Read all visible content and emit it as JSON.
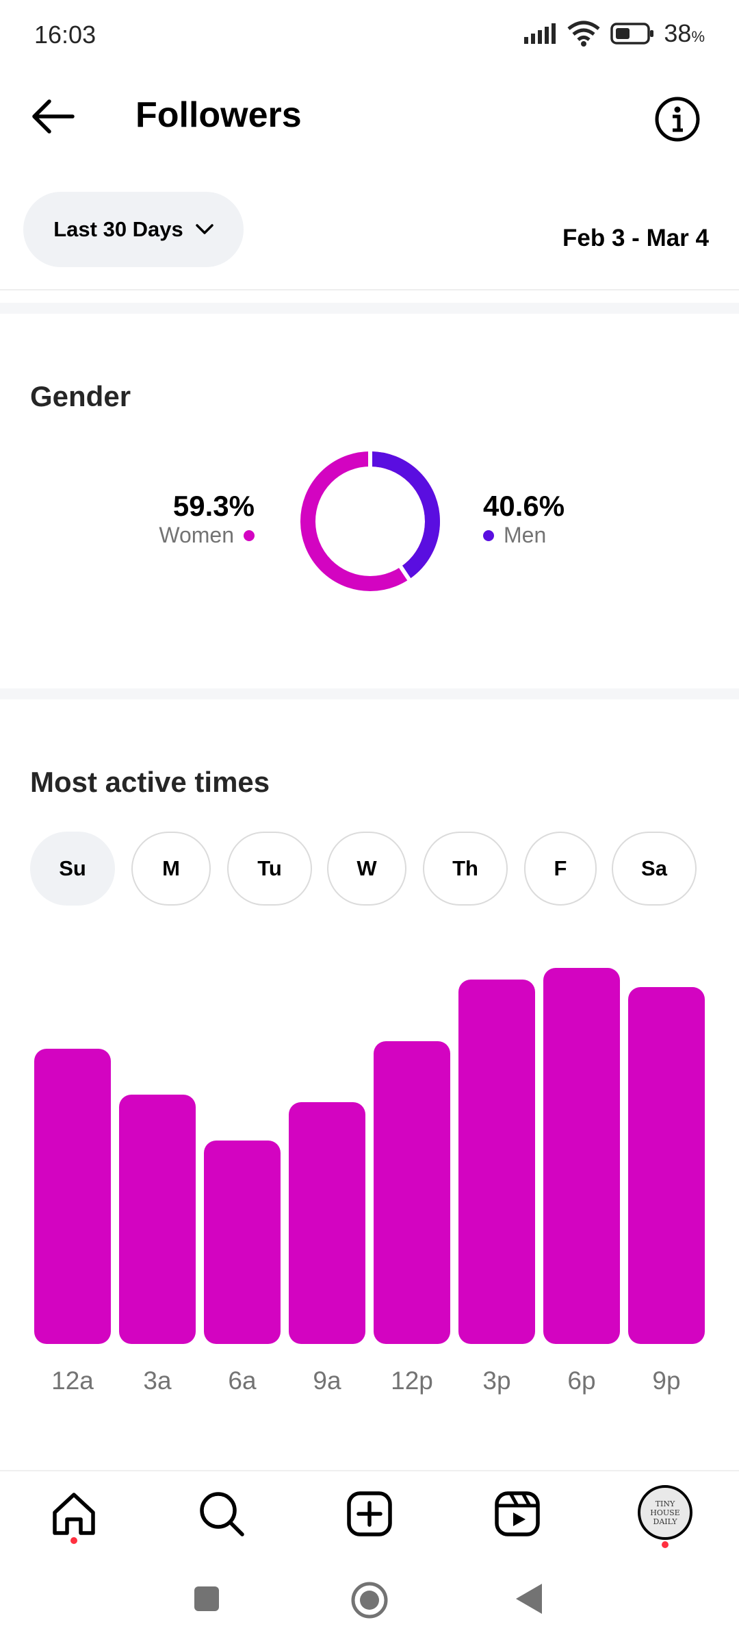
{
  "status_bar": {
    "time": "16:03",
    "battery_value": "38",
    "battery_unit": "%"
  },
  "header": {
    "title": "Followers",
    "back_icon": "back-arrow-icon",
    "info_icon": "info-icon"
  },
  "filter": {
    "range_label": "Last 30 Days",
    "date_range": "Feb 3 - Mar 4"
  },
  "gender": {
    "title": "Gender",
    "women": {
      "percent": "59.3%",
      "label": "Women",
      "color": "#d304c1",
      "value": 59.3
    },
    "men": {
      "percent": "40.6%",
      "label": "Men",
      "color": "#5a0ee0",
      "value": 40.6
    }
  },
  "active_times": {
    "title": "Most active times",
    "days": [
      "Su",
      "M",
      "Tu",
      "W",
      "Th",
      "F",
      "Sa"
    ],
    "selected_day": "Su"
  },
  "chart_data": {
    "type": "bar",
    "categories": [
      "12a",
      "3a",
      "6a",
      "9a",
      "12p",
      "3p",
      "6p",
      "9p"
    ],
    "values": [
      77,
      65,
      53,
      63,
      79,
      95,
      98,
      93
    ],
    "ylim": [
      0,
      100
    ],
    "color": "#d304c1",
    "grid": false
  },
  "bottom_nav": {
    "items": [
      "home-icon",
      "search-icon",
      "create-icon",
      "reels-icon",
      "profile-avatar"
    ],
    "avatar_text": "TINY HOUSE DAILY"
  }
}
